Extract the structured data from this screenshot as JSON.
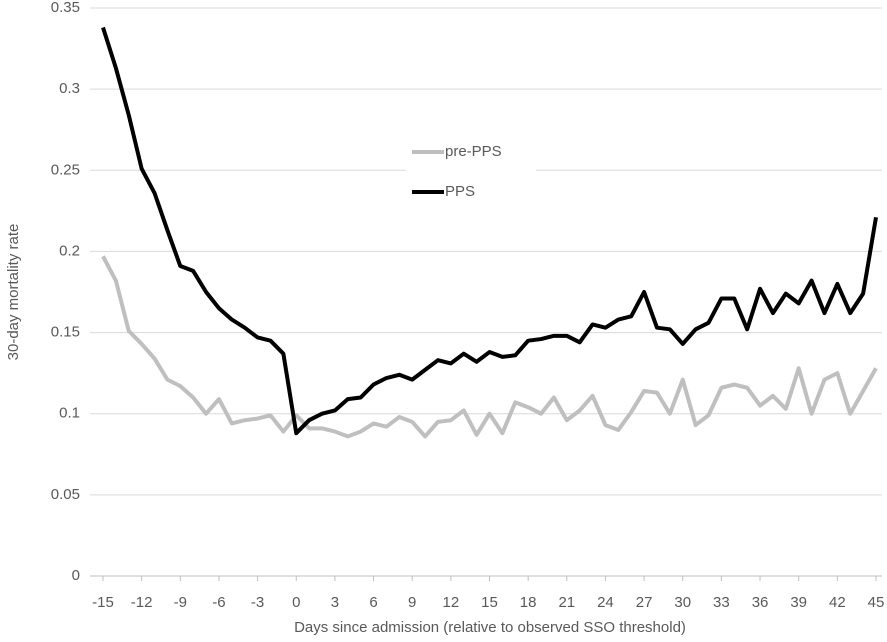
{
  "chart_data": {
    "type": "line",
    "x_label": "Days since admission (relative to observed SSO threshold)",
    "y_label": "30-day mortality  rate",
    "x": [
      -15,
      -14,
      -13,
      -12,
      -11,
      -10,
      -9,
      -8,
      -7,
      -6,
      -5,
      -4,
      -3,
      -2,
      -1,
      0,
      1,
      2,
      3,
      4,
      5,
      6,
      7,
      8,
      9,
      10,
      11,
      12,
      13,
      14,
      15,
      16,
      17,
      18,
      19,
      20,
      21,
      22,
      23,
      24,
      25,
      26,
      27,
      28,
      29,
      30,
      31,
      32,
      33,
      34,
      35,
      36,
      37,
      38,
      39,
      40,
      41,
      42,
      43,
      44,
      45
    ],
    "series": [
      {
        "name": "pre-PPS",
        "color": "#bfbfbf",
        "values": [
          0.197,
          0.182,
          0.151,
          0.143,
          0.134,
          0.121,
          0.117,
          0.11,
          0.1,
          0.109,
          0.094,
          0.096,
          0.097,
          0.099,
          0.089,
          0.099,
          0.091,
          0.091,
          0.089,
          0.086,
          0.089,
          0.094,
          0.092,
          0.098,
          0.095,
          0.086,
          0.095,
          0.096,
          0.102,
          0.087,
          0.1,
          0.088,
          0.107,
          0.104,
          0.1,
          0.11,
          0.096,
          0.102,
          0.111,
          0.093,
          0.09,
          0.101,
          0.114,
          0.113,
          0.1,
          0.121,
          0.093,
          0.099,
          0.116,
          0.118,
          0.116,
          0.105,
          0.111,
          0.103,
          0.128,
          0.1,
          0.121,
          0.125,
          0.1,
          0.114,
          0.128
        ]
      },
      {
        "name": "PPS",
        "color": "#000000",
        "values": [
          0.338,
          0.313,
          0.284,
          0.251,
          0.236,
          0.213,
          0.191,
          0.188,
          0.175,
          0.165,
          0.158,
          0.153,
          0.147,
          0.145,
          0.137,
          0.088,
          0.096,
          0.1,
          0.102,
          0.109,
          0.11,
          0.118,
          0.122,
          0.124,
          0.121,
          0.127,
          0.133,
          0.131,
          0.137,
          0.132,
          0.138,
          0.135,
          0.136,
          0.145,
          0.146,
          0.148,
          0.148,
          0.144,
          0.155,
          0.153,
          0.158,
          0.16,
          0.175,
          0.153,
          0.152,
          0.143,
          0.152,
          0.156,
          0.171,
          0.171,
          0.152,
          0.177,
          0.162,
          0.174,
          0.168,
          0.182,
          0.162,
          0.18,
          0.162,
          0.174,
          0.221
        ]
      }
    ],
    "xlim": [
      -15,
      45
    ],
    "xticks": [
      -15,
      -12,
      -9,
      -6,
      -3,
      0,
      3,
      6,
      9,
      12,
      15,
      18,
      21,
      24,
      27,
      30,
      33,
      36,
      39,
      42,
      45
    ],
    "ylim": [
      0,
      0.35
    ],
    "yticks": [
      0,
      0.05,
      0.1,
      0.15,
      0.2,
      0.25,
      0.3,
      0.35
    ],
    "grid": true,
    "legend": "center"
  }
}
